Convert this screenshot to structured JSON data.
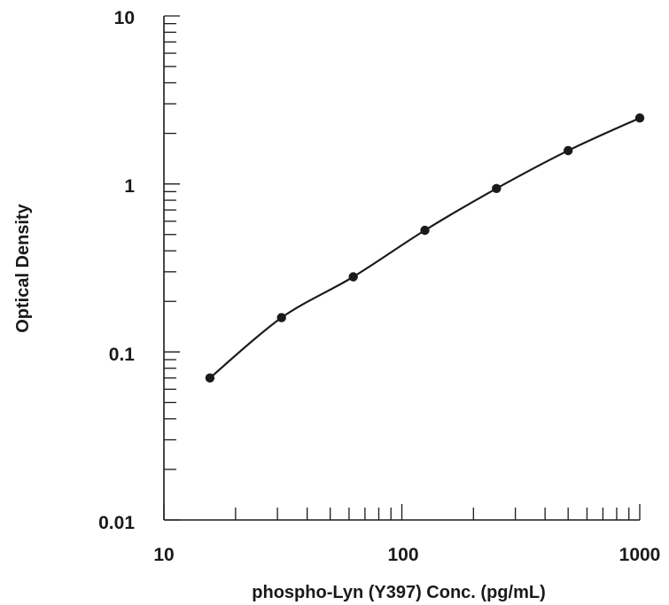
{
  "chart_data": {
    "type": "scatter",
    "title": "",
    "xlabel": "phospho-Lyn (Y397) Conc. (pg/mL)",
    "ylabel": "Optical Density",
    "x_scale": "log",
    "y_scale": "log",
    "xlim": [
      10,
      1000
    ],
    "ylim": [
      0.01,
      10
    ],
    "x_tick_labels": [
      "10",
      "100",
      "1000"
    ],
    "y_tick_labels": [
      "10",
      "1",
      "0.1",
      "0.01"
    ],
    "grid": false,
    "legend": "none",
    "fit_line": true,
    "series": [
      {
        "x": [
          15.6,
          31.2,
          62.5,
          125,
          250,
          500,
          1000
        ],
        "y": [
          0.07,
          0.16,
          0.28,
          0.53,
          0.94,
          1.58,
          2.47
        ]
      }
    ]
  },
  "colors": {
    "ink": "#1a1a1a",
    "background": "#ffffff"
  }
}
